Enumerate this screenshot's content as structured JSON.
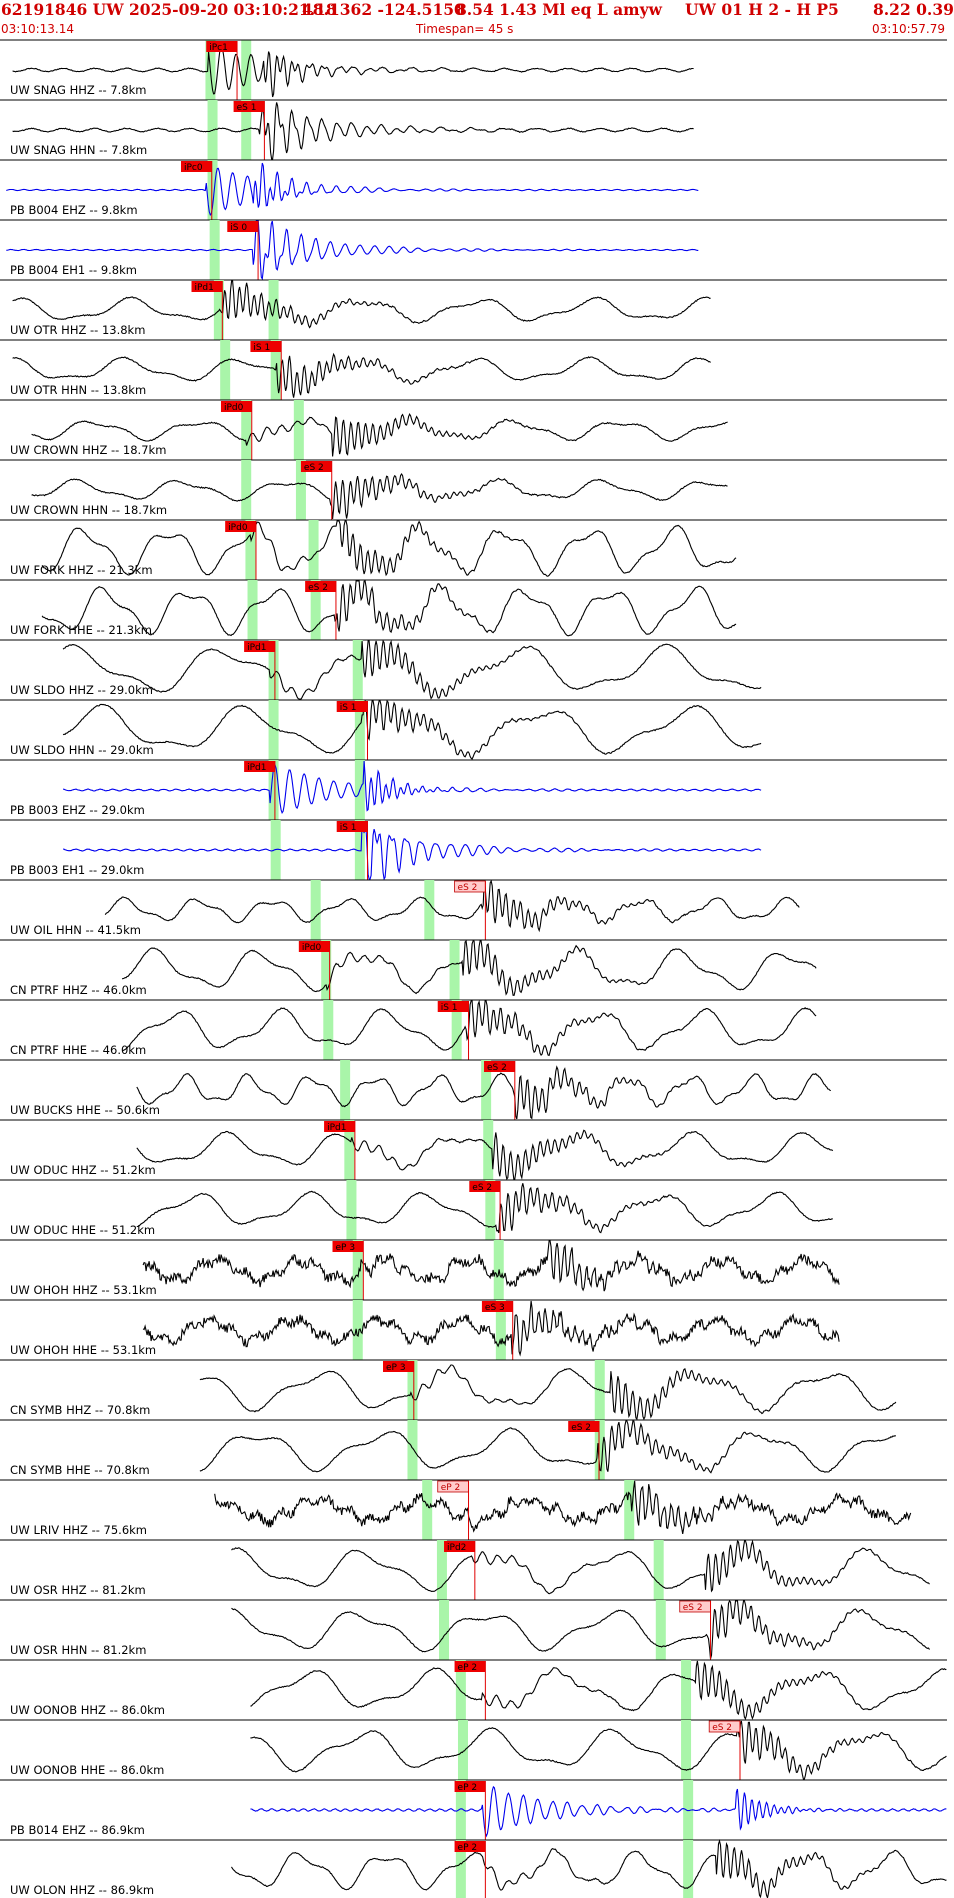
{
  "header": {
    "event_id": "62191846 UW 2025-09-20 03:10:21.18",
    "location": "48.1362 -124.5150",
    "depth_mag": "8.54  1.43 Ml  eq  L amyw",
    "station_info": "UW 01  H   2  -  H P5",
    "rms_err": "8.22  0.39",
    "start_time": "03:10:13.14",
    "timespan": "Timespan=  45 s",
    "end_time": "03:10:57.79"
  },
  "chart_data": {
    "type": "line",
    "timespan_s": 45,
    "colors": {
      "header": "#d00000",
      "trace_black": "#000000",
      "trace_blue": "#0000ee",
      "pick_fill": "#ee0000",
      "pick_fill_light": "#ffcccc",
      "theory_marker": "#a9f5a9",
      "divider": "#000000"
    },
    "channels": [
      {
        "label": "UW SNAG HHZ -- 7.8km",
        "color": "black",
        "t0": 0.6,
        "t1": 33.0,
        "amp": 0.06,
        "kind": "hf",
        "period": 1.5,
        "pick": "iPc1",
        "pick_t": 9.8,
        "pick_style": "red",
        "onset_t": 9.9,
        "burst_t": 12.5,
        "green": [
          10.0,
          11.7
        ]
      },
      {
        "label": "UW SNAG HHN -- 7.8km",
        "color": "black",
        "t0": 0.6,
        "t1": 33.0,
        "amp": 0.06,
        "kind": "hf",
        "period": 1.5,
        "pick": "eS 1",
        "pick_t": 11.1,
        "pick_style": "red",
        "onset_t": 12.3,
        "burst_t": 12.5,
        "green": [
          10.1,
          11.7
        ]
      },
      {
        "label": "PB B004 EHZ -- 9.8km",
        "color": "blue",
        "t0": 0.3,
        "t1": 33.2,
        "amp": 0.02,
        "kind": "hf",
        "period": 0.6,
        "pick": "iPc0",
        "pick_t": 8.6,
        "pick_style": "red",
        "onset_t": 9.8,
        "burst_t": 12.0,
        "green": [
          10.1
        ]
      },
      {
        "label": "PB B004 EH1 -- 9.8km",
        "color": "blue",
        "t0": 0.3,
        "t1": 33.2,
        "amp": 0.02,
        "kind": "hf",
        "period": 0.6,
        "pick": "iS 0",
        "pick_t": 10.8,
        "pick_style": "red",
        "onset_t": 12.0,
        "burst_t": 12.0,
        "green": [
          10.2
        ]
      },
      {
        "label": "UW OTR HHZ -- 13.8km",
        "color": "black",
        "t0": 0.6,
        "t1": 33.8,
        "amp": 0.35,
        "kind": "lf",
        "period": 5.5,
        "pick": "iPd1",
        "pick_t": 9.1,
        "pick_style": "red",
        "onset_t": 10.4,
        "burst_t": 10.6,
        "green": [
          10.4,
          13.0
        ]
      },
      {
        "label": "UW OTR HHN -- 13.8km",
        "color": "black",
        "t0": 0.6,
        "t1": 33.8,
        "amp": 0.35,
        "kind": "lf",
        "period": 5.5,
        "pick": "iS 1",
        "pick_t": 11.9,
        "pick_style": "red",
        "onset_t": 13.1,
        "burst_t": 13.1,
        "green": [
          10.7,
          13.1
        ]
      },
      {
        "label": "UW CROWN HHZ -- 18.7km",
        "color": "black",
        "t0": 1.5,
        "t1": 34.6,
        "amp": 0.3,
        "kind": "lf",
        "period": 5.0,
        "pick": "iPd0",
        "pick_t": 10.5,
        "pick_style": "red",
        "onset_t": 11.7,
        "burst_t": 15.8,
        "green": [
          11.7,
          14.2
        ]
      },
      {
        "label": "UW CROWN HHN -- 18.7km",
        "color": "black",
        "t0": 1.5,
        "t1": 34.6,
        "amp": 0.3,
        "kind": "lf",
        "period": 5.0,
        "pick": "eS 2",
        "pick_t": 14.3,
        "pick_style": "red",
        "onset_t": 15.7,
        "burst_t": 15.8,
        "green": [
          11.7,
          14.3
        ]
      },
      {
        "label": "UW FORK HHZ -- 21.3km",
        "color": "black",
        "t0": 2.0,
        "t1": 35.0,
        "amp": 0.7,
        "kind": "lf",
        "period": 4.0,
        "pick": "iPd0",
        "pick_t": 10.7,
        "pick_style": "red",
        "onset_t": 11.9,
        "burst_t": 16.0,
        "green": [
          11.9,
          14.9
        ]
      },
      {
        "label": "UW FORK HHE -- 21.3km",
        "color": "black",
        "t0": 2.0,
        "t1": 35.0,
        "amp": 0.7,
        "kind": "lf",
        "period": 4.0,
        "pick": "eS 2",
        "pick_t": 14.5,
        "pick_style": "red",
        "onset_t": 15.9,
        "burst_t": 16.0,
        "green": [
          12.0,
          15.0
        ]
      },
      {
        "label": "UW SLDO HHZ -- 29.0km",
        "color": "black",
        "t0": 3.0,
        "t1": 36.2,
        "amp": 0.7,
        "kind": "lf",
        "period": 7.0,
        "pick": "iPd1",
        "pick_t": 11.6,
        "pick_style": "red",
        "onset_t": 12.8,
        "burst_t": 17.2,
        "green": [
          13.0,
          17.0
        ]
      },
      {
        "label": "UW SLDO HHN -- 29.0km",
        "color": "black",
        "t0": 3.0,
        "t1": 36.2,
        "amp": 0.7,
        "kind": "lf",
        "period": 7.0,
        "pick": "iS 1",
        "pick_t": 16.0,
        "pick_style": "red",
        "onset_t": 17.2,
        "burst_t": 17.3,
        "green": [
          13.0,
          17.1
        ]
      },
      {
        "label": "PB B003 EHZ -- 29.0km",
        "color": "blue",
        "t0": 3.0,
        "t1": 36.2,
        "amp": 0.03,
        "kind": "hf",
        "period": 0.6,
        "pick": "iPd1",
        "pick_t": 11.6,
        "pick_style": "red",
        "onset_t": 12.8,
        "burst_t": 17.3,
        "green": [
          13.0,
          17.1
        ]
      },
      {
        "label": "PB B003 EH1 -- 29.0km",
        "color": "blue",
        "t0": 3.0,
        "t1": 36.2,
        "amp": 0.03,
        "kind": "hf",
        "period": 0.6,
        "pick": "iS 1",
        "pick_t": 16.0,
        "pick_style": "red",
        "onset_t": 17.2,
        "burst_t": 17.3,
        "green": [
          13.1,
          17.1
        ]
      },
      {
        "label": "UW OIL HHN -- 41.5km",
        "color": "black",
        "t0": 5.0,
        "t1": 38.0,
        "amp": 0.35,
        "kind": "lf",
        "period": 3.5,
        "pick": "eS 2",
        "pick_t": 21.6,
        "pick_style": "light",
        "onset_t": 22.9,
        "burst_t": 23.0,
        "green": [
          15.0,
          20.4
        ]
      },
      {
        "label": "CN PTRF HHZ -- 46.0km",
        "color": "black",
        "t0": 5.8,
        "t1": 38.8,
        "amp": 0.6,
        "kind": "lf",
        "period": 5.0,
        "pick": "iPd0",
        "pick_t": 14.2,
        "pick_style": "red",
        "onset_t": 15.5,
        "burst_t": 22.0,
        "green": [
          15.5,
          21.6
        ]
      },
      {
        "label": "CN PTRF HHE -- 46.0km",
        "color": "black",
        "t0": 5.8,
        "t1": 38.8,
        "amp": 0.6,
        "kind": "lf",
        "period": 5.0,
        "pick": "iS 1",
        "pick_t": 20.8,
        "pick_style": "red",
        "onset_t": 22.1,
        "burst_t": 22.1,
        "green": [
          15.6,
          21.7
        ]
      },
      {
        "label": "UW BUCKS HHE -- 50.6km",
        "color": "black",
        "t0": 6.5,
        "t1": 39.5,
        "amp": 0.45,
        "kind": "lf",
        "period": 3.0,
        "pick": "eS 2",
        "pick_t": 23.0,
        "pick_style": "red",
        "onset_t": 24.4,
        "burst_t": 24.5,
        "green": [
          16.4,
          23.1
        ]
      },
      {
        "label": "UW ODUC HHZ -- 51.2km",
        "color": "black",
        "t0": 6.5,
        "t1": 39.6,
        "amp": 0.5,
        "kind": "lf",
        "period": 5.5,
        "pick": "iPd1",
        "pick_t": 15.4,
        "pick_style": "red",
        "onset_t": 16.7,
        "burst_t": 23.4,
        "green": [
          16.6,
          23.2
        ]
      },
      {
        "label": "UW ODUC HHE -- 51.2km",
        "color": "black",
        "t0": 6.5,
        "t1": 39.6,
        "amp": 0.5,
        "kind": "lf",
        "period": 5.5,
        "pick": "eS 2",
        "pick_t": 22.3,
        "pick_style": "red",
        "onset_t": 23.6,
        "burst_t": 23.7,
        "green": [
          16.7,
          23.3
        ]
      },
      {
        "label": "UW OHOH HHZ -- 53.1km",
        "color": "black",
        "t0": 6.8,
        "t1": 39.9,
        "amp": 0.45,
        "kind": "noisy",
        "period": 4.0,
        "pick": "eP 3",
        "pick_t": 15.8,
        "pick_style": "red",
        "onset_t": 17.0,
        "burst_t": 26.0,
        "green": [
          17.0,
          23.7
        ]
      },
      {
        "label": "UW OHOH HHE -- 53.1km",
        "color": "black",
        "t0": 6.8,
        "t1": 39.9,
        "amp": 0.45,
        "kind": "noisy",
        "period": 4.0,
        "pick": "eS 3",
        "pick_t": 22.9,
        "pick_style": "red",
        "onset_t": 24.2,
        "burst_t": 24.3,
        "green": [
          17.0,
          23.8
        ]
      },
      {
        "label": "CN SYMB HHZ -- 70.8km",
        "color": "black",
        "t0": 9.5,
        "t1": 42.6,
        "amp": 0.6,
        "kind": "lf",
        "period": 6.0,
        "pick": "eP 3",
        "pick_t": 18.2,
        "pick_style": "red",
        "onset_t": 19.5,
        "burst_t": 29.0,
        "green": [
          19.6,
          28.5
        ]
      },
      {
        "label": "CN SYMB HHE -- 70.8km",
        "color": "black",
        "t0": 9.5,
        "t1": 42.6,
        "amp": 0.6,
        "kind": "lf",
        "period": 6.0,
        "pick": "eS 2",
        "pick_t": 27.0,
        "pick_style": "red",
        "onset_t": 28.3,
        "burst_t": 28.4,
        "green": [
          19.6,
          28.5
        ]
      },
      {
        "label": "UW LRIV HHZ -- 75.6km",
        "color": "black",
        "t0": 10.2,
        "t1": 43.3,
        "amp": 0.45,
        "kind": "noisy",
        "period": 5.0,
        "pick": "eP 2",
        "pick_t": 20.8,
        "pick_style": "light",
        "onset_t": 22.1,
        "burst_t": 30.0,
        "green": [
          20.3,
          29.9
        ]
      },
      {
        "label": "UW OSR HHZ -- 81.2km",
        "color": "black",
        "t0": 11.0,
        "t1": 44.2,
        "amp": 0.6,
        "kind": "lf",
        "period": 6.0,
        "pick": "iPd2",
        "pick_t": 21.1,
        "pick_style": "red",
        "onset_t": 22.4,
        "burst_t": 33.5,
        "green": [
          21.0,
          31.3
        ]
      },
      {
        "label": "UW OSR HHN -- 81.2km",
        "color": "black",
        "t0": 11.0,
        "t1": 44.2,
        "amp": 0.6,
        "kind": "lf",
        "period": 6.0,
        "pick": "eS 2",
        "pick_t": 32.3,
        "pick_style": "light",
        "onset_t": 33.6,
        "burst_t": 33.7,
        "green": [
          21.1,
          31.4
        ]
      },
      {
        "label": "UW OONOB HHZ -- 86.0km",
        "color": "black",
        "t0": 11.9,
        "t1": 45.0,
        "amp": 0.6,
        "kind": "lf",
        "period": 6.0,
        "pick": "eP 2",
        "pick_t": 21.6,
        "pick_style": "red",
        "onset_t": 22.9,
        "burst_t": 33.0,
        "green": [
          21.9,
          32.6
        ]
      },
      {
        "label": "UW OONOB HHE -- 86.0km",
        "color": "black",
        "t0": 11.9,
        "t1": 45.0,
        "amp": 0.6,
        "kind": "lf",
        "period": 6.0,
        "pick": "eS 2",
        "pick_t": 33.7,
        "pick_style": "light",
        "onset_t": 35.0,
        "burst_t": 35.1,
        "green": [
          22.0,
          32.6
        ]
      },
      {
        "label": "PB B014 EHZ -- 86.9km",
        "color": "blue",
        "t0": 11.9,
        "t1": 45.0,
        "amp": 0.04,
        "kind": "hf",
        "period": 0.5,
        "pick": "eP 2",
        "pick_t": 21.6,
        "pick_style": "red",
        "onset_t": 22.9,
        "burst_t": 34.9,
        "green": [
          21.9,
          32.7
        ]
      },
      {
        "label": "UW OLON HHZ -- 86.9km",
        "color": "black",
        "t0": 11.0,
        "t1": 45.0,
        "amp": 0.55,
        "kind": "lf",
        "period": 4.0,
        "pick": "eP 2",
        "pick_t": 21.6,
        "pick_style": "red",
        "onset_t": 22.9,
        "burst_t": 34.0,
        "green": [
          21.9,
          32.7
        ]
      }
    ]
  }
}
